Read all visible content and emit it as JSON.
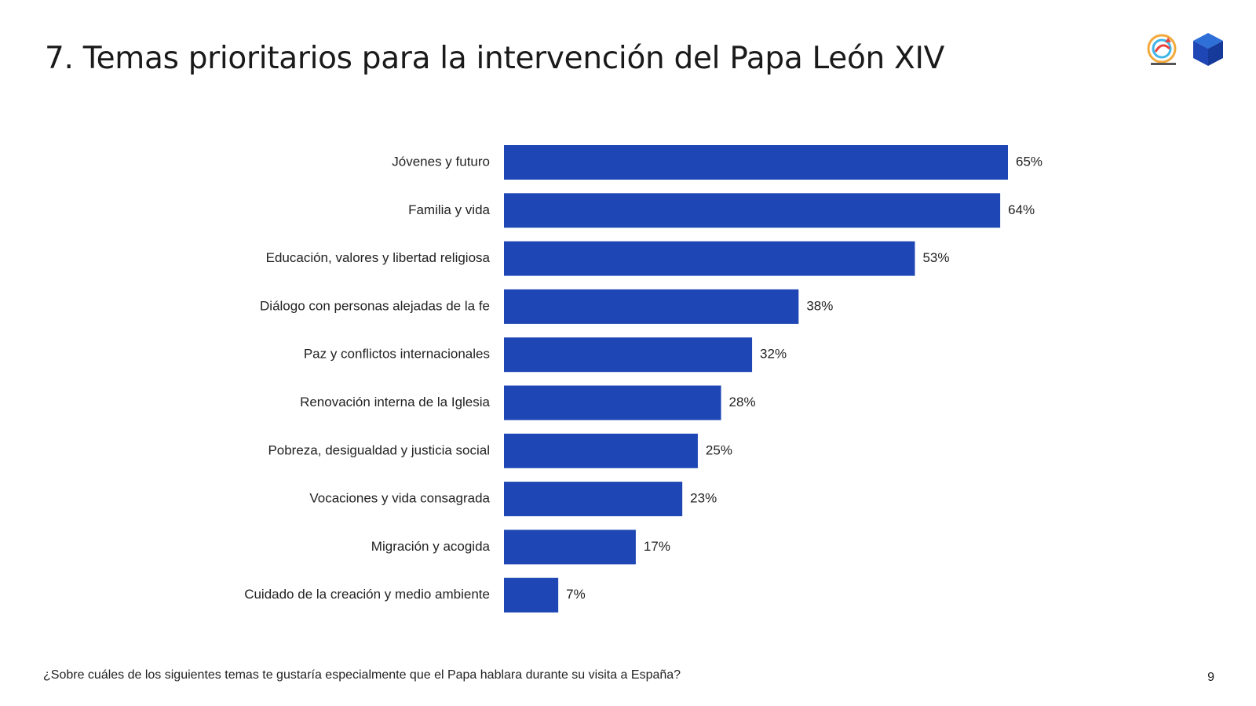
{
  "slide": {
    "title": "7. Temas prioritarios para la intervención del Papa León XIV",
    "question": "¿Sobre cuáles de los siguientes temas te gustaría especialmente que el Papa hablara durante su visita a España?",
    "page_number": "9"
  },
  "logos": {
    "left_icon": "event-logo-icon",
    "right_icon": "cube-logo-icon"
  },
  "chart_data": {
    "type": "bar",
    "orientation": "horizontal",
    "categories": [
      "Jóvenes y futuro",
      "Familia y vida",
      "Educación, valores y libertad religiosa",
      "Diálogo con personas alejadas de la fe",
      "Paz y conflictos internacionales",
      "Renovación interna de la Iglesia",
      "Pobreza, desigualdad y justicia social",
      "Vocaciones y vida consagrada",
      "Migración y acogida",
      "Cuidado de la creación y medio ambiente"
    ],
    "values": [
      65,
      64,
      53,
      38,
      32,
      28,
      25,
      23,
      17,
      7
    ],
    "value_labels": [
      "65%",
      "64%",
      "53%",
      "38%",
      "32%",
      "28%",
      "25%",
      "23%",
      "17%",
      "7%"
    ],
    "unit": "%",
    "xlim": [
      0,
      65
    ],
    "grid": false,
    "bar_color": "#1e46b4"
  }
}
